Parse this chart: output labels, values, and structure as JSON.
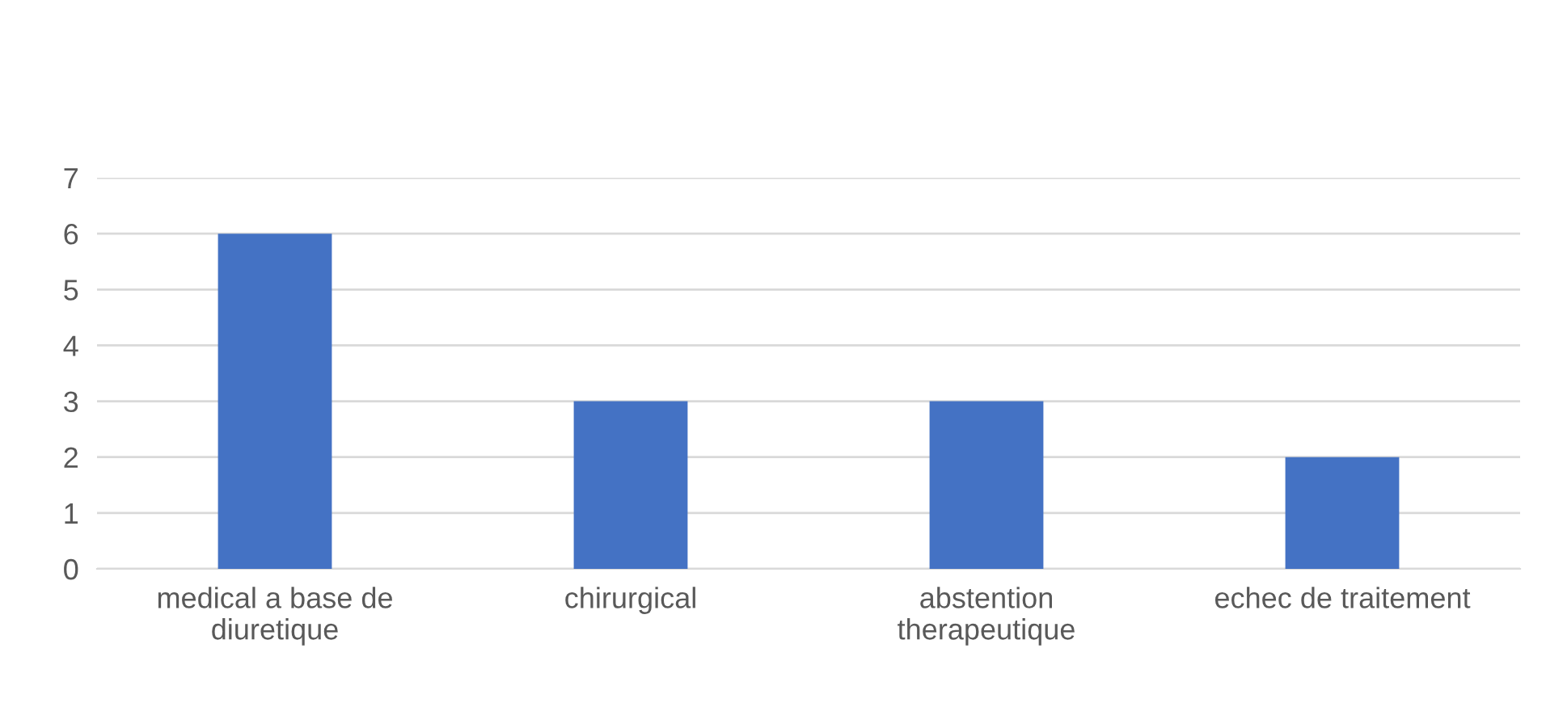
{
  "chart_data": {
    "type": "bar",
    "categories": [
      "medical a base de\ndiuretique",
      "chirurgical",
      "abstention\ntherapeutique",
      "echec de traitement"
    ],
    "values": [
      6,
      3,
      3,
      2
    ],
    "color": "#4472c4",
    "ylim": [
      0,
      7
    ],
    "yticks": [
      0,
      1,
      2,
      3,
      4,
      5,
      6,
      7
    ],
    "grid": "y"
  }
}
